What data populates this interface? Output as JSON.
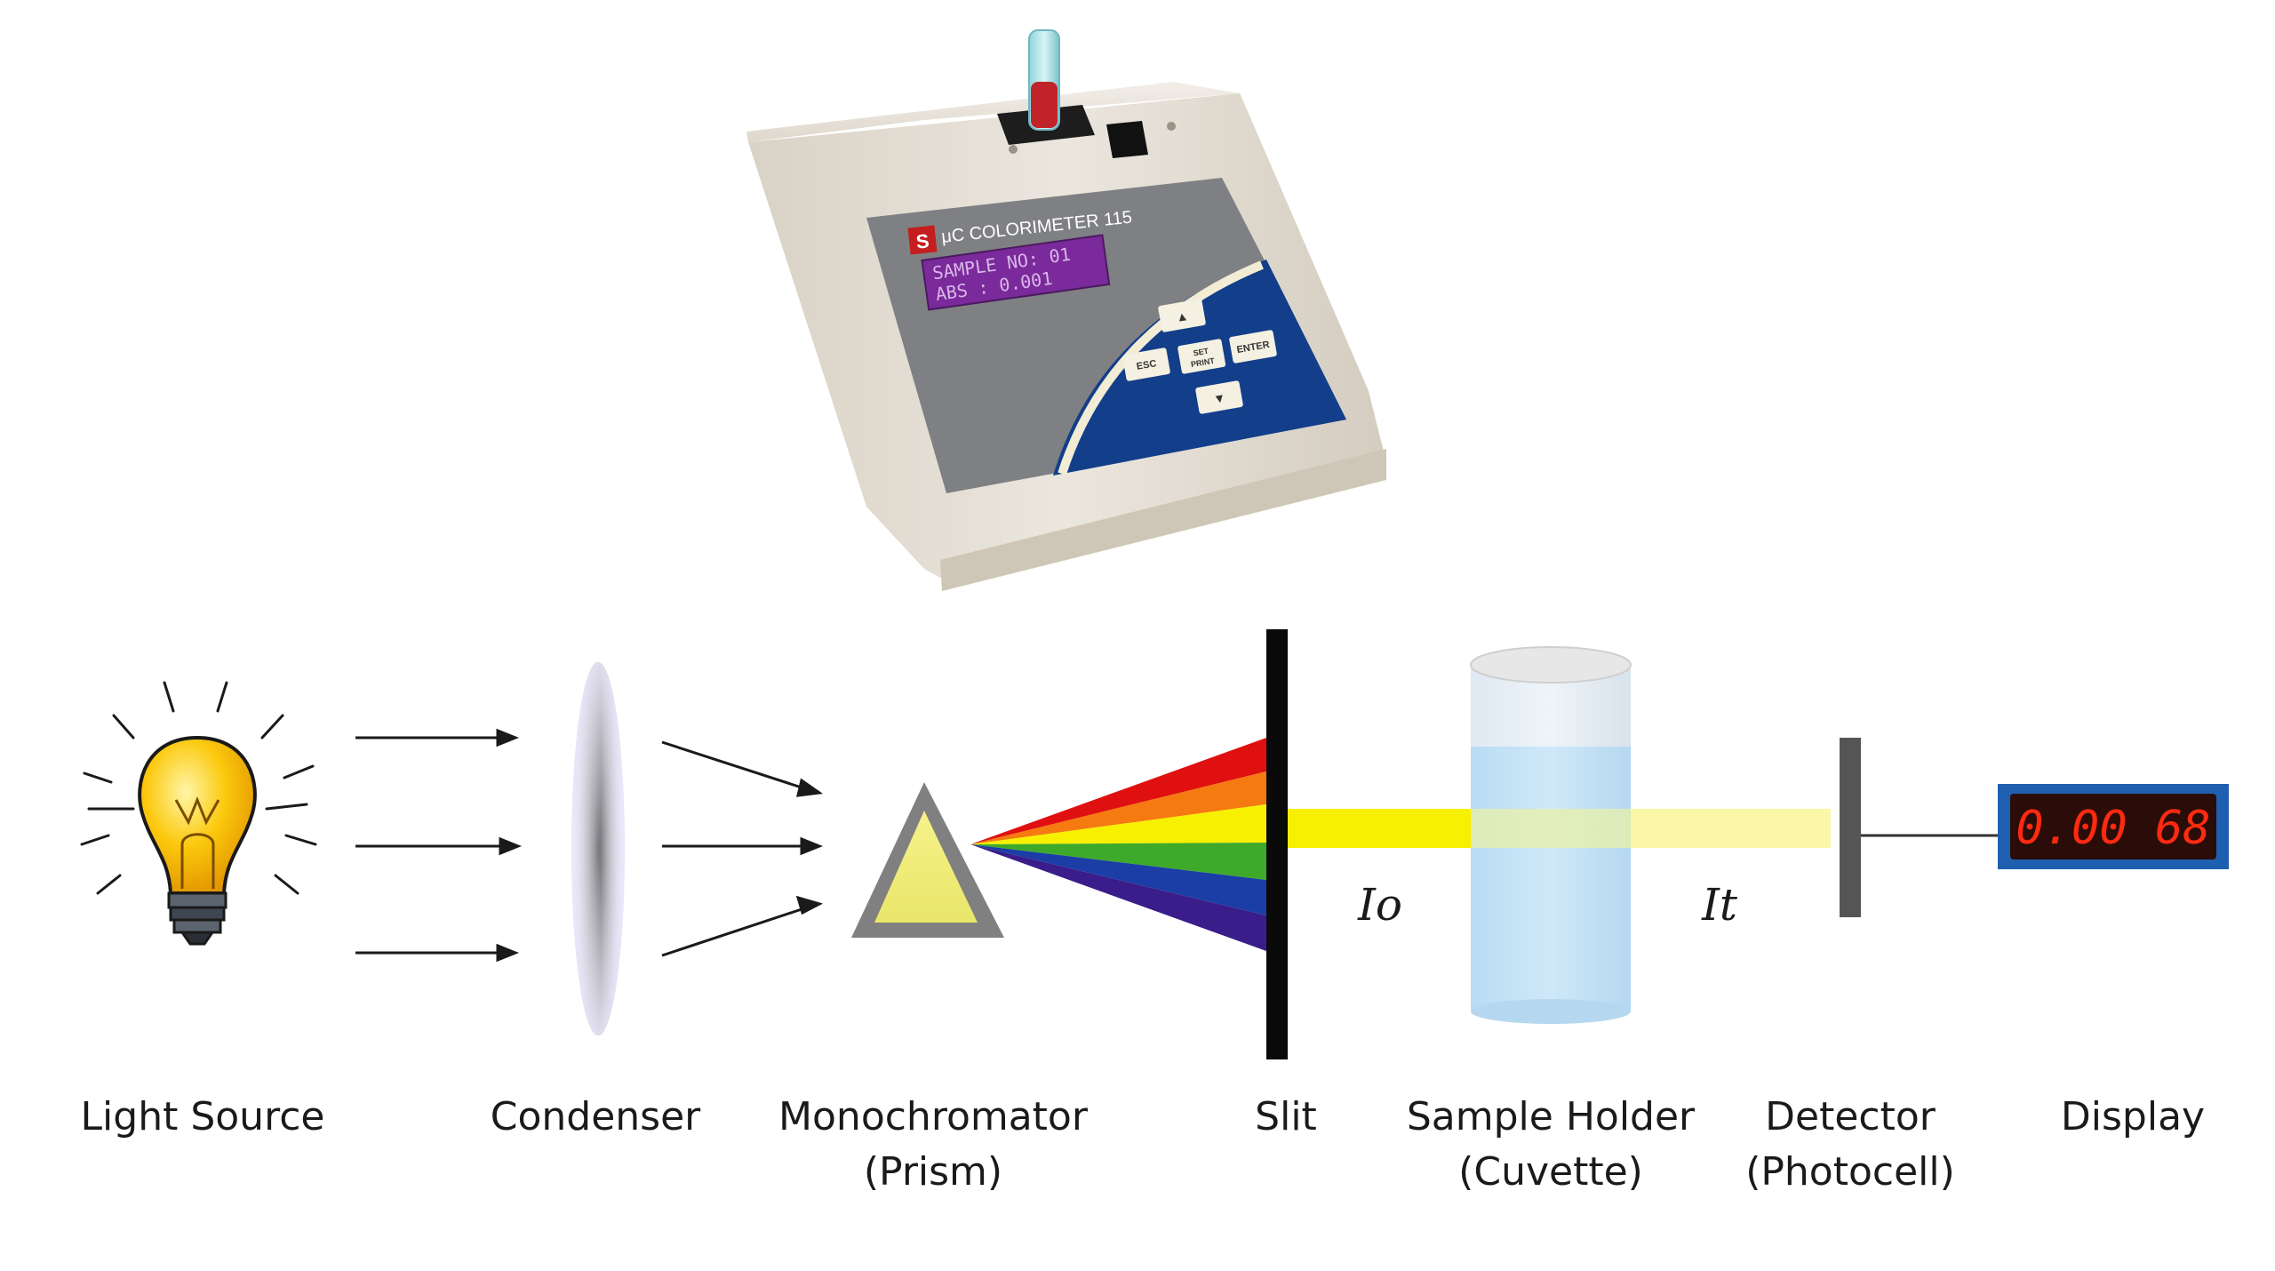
{
  "device": {
    "brand_logo": "S",
    "model": "μC COLORIMETER 115",
    "lcd_line1": "SAMPLE NO: 01",
    "lcd_line2": "ABS : 0.001",
    "keys": {
      "up": "▲",
      "down": "▼",
      "esc": "ESC",
      "set": "SET",
      "print": "PRINT",
      "enter": "ENTER"
    }
  },
  "intensity": {
    "incident": "Io",
    "transmitted": "It"
  },
  "display_reading": "0.00 68",
  "components": [
    {
      "line1": "Light Source",
      "line2": ""
    },
    {
      "line1": "Condenser",
      "line2": ""
    },
    {
      "line1": "Monochromator",
      "line2": "(Prism)"
    },
    {
      "line1": "Slit",
      "line2": ""
    },
    {
      "line1": "Sample Holder",
      "line2": "(Cuvette)"
    },
    {
      "line1": "Detector",
      "line2": "(Photocell)"
    },
    {
      "line1": "Display",
      "line2": ""
    }
  ],
  "colors": {
    "panel_blue": "#123e8a",
    "lcd_purple": "#7a2a9a",
    "bulb_yellow": "#f5b700",
    "beam_yellow": "#f7f000",
    "display_red": "#ff2a10"
  }
}
